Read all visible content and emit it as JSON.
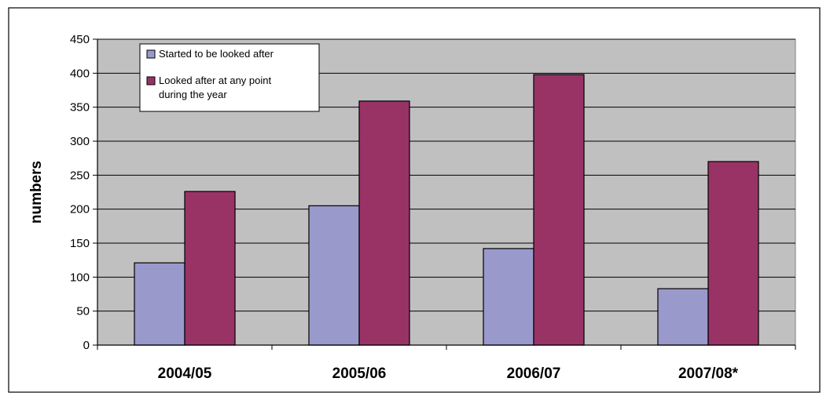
{
  "chart_data": {
    "type": "bar",
    "categories": [
      "2004/05",
      "2005/06",
      "2006/07",
      "2007/08*"
    ],
    "series": [
      {
        "name": "Started to be looked after",
        "values": [
          121,
          205,
          142,
          83
        ],
        "color": "#9999CC"
      },
      {
        "name": "Looked after at any point during the year",
        "values": [
          226,
          359,
          398,
          270
        ],
        "color": "#993366"
      }
    ],
    "title": "",
    "xlabel": "",
    "ylabel": "numbers",
    "ylim": [
      0,
      450
    ],
    "yticks": [
      0,
      50,
      100,
      150,
      200,
      250,
      300,
      350,
      400,
      450
    ],
    "grid": true,
    "legend_position": "top-left",
    "legend_lines": [
      [
        "Started to be looked after"
      ],
      [
        "Looked after at any point",
        "during the year"
      ]
    ],
    "plot_background": "#C0C0C0"
  }
}
